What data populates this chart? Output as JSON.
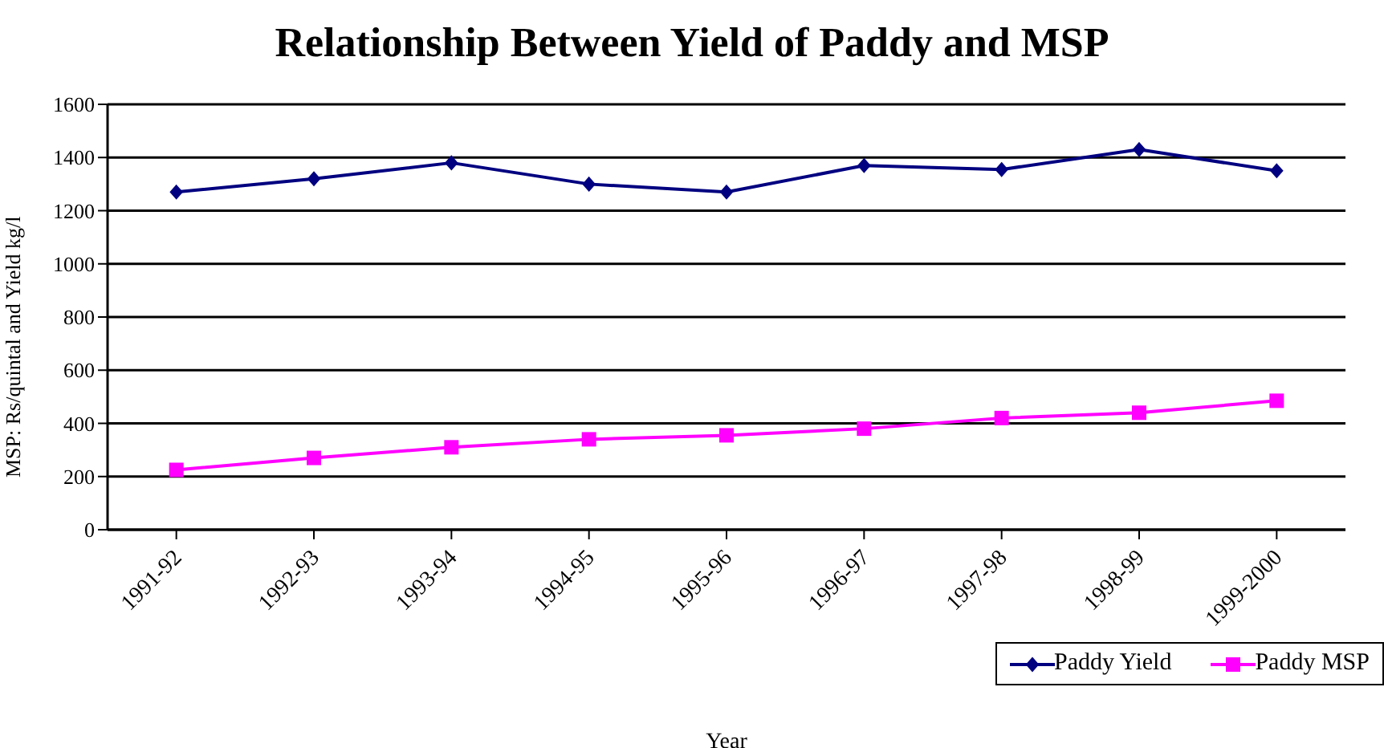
{
  "chart_data": {
    "type": "line",
    "title": "Relationship Between Yield of Paddy and MSP",
    "xlabel": "Year",
    "ylabel": "MSP: Rs/quintal and Yield kg/l",
    "categories": [
      "1991-92",
      "1992-93",
      "1993-94",
      "1994-95",
      "1995-96",
      "1996-97",
      "1997-98",
      "1998-99",
      "1999-2000"
    ],
    "series": [
      {
        "name": "Paddy Yield",
        "color": "#000080",
        "marker": "diamond",
        "values": [
          1270,
          1320,
          1380,
          1300,
          1270,
          1370,
          1355,
          1430,
          1350
        ]
      },
      {
        "name": "Paddy MSP",
        "color": "#ff00ff",
        "marker": "square",
        "values": [
          225,
          270,
          310,
          340,
          355,
          380,
          420,
          440,
          485
        ]
      }
    ],
    "ylim": [
      0,
      1600
    ],
    "yticks": [
      0,
      200,
      400,
      600,
      800,
      1000,
      1200,
      1400,
      1600
    ],
    "grid": "y",
    "legend": "bottom right",
    "line_style": "solid"
  }
}
